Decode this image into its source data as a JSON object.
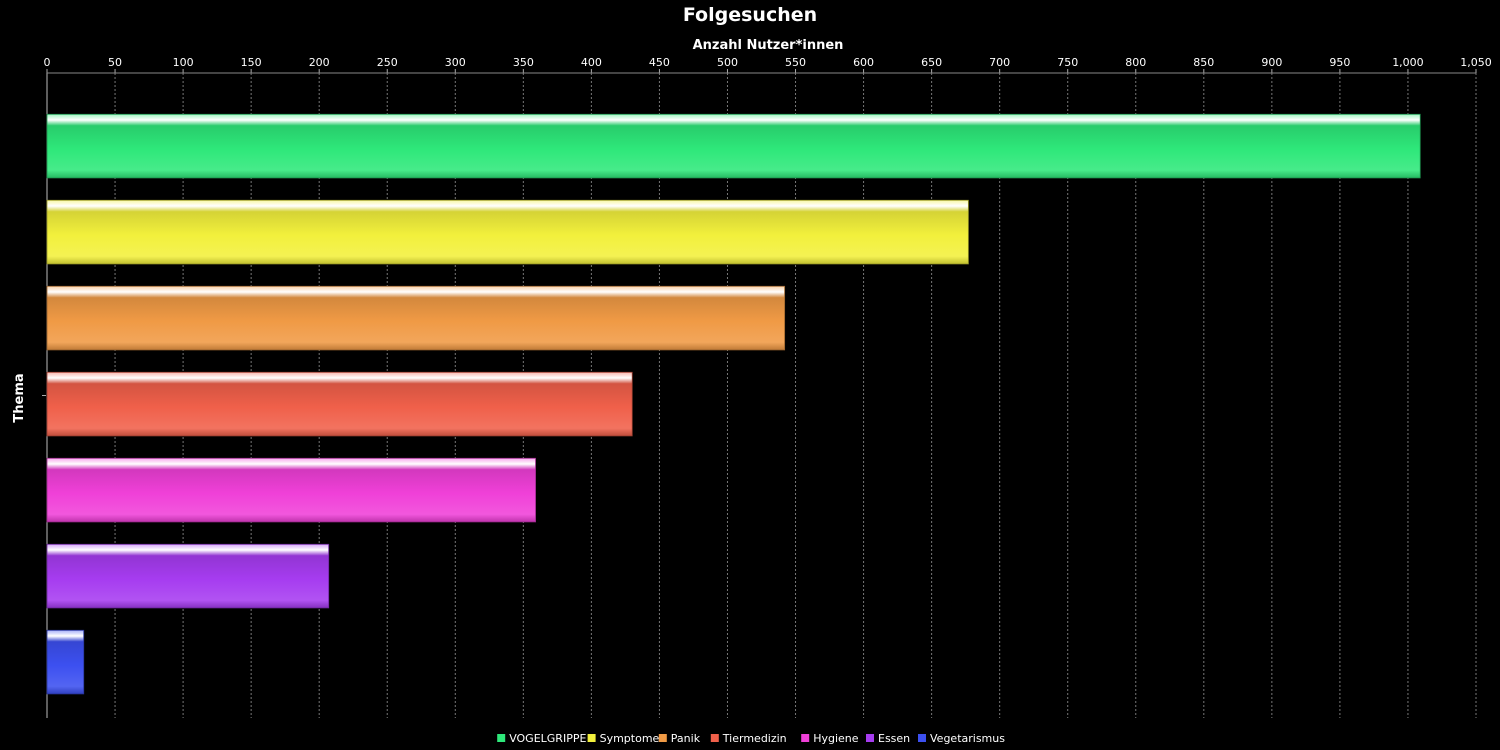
{
  "chart_data": {
    "type": "bar",
    "orientation": "horizontal",
    "title": "Folgesuchen",
    "xlabel": "Anzahl Nutzer*innen",
    "ylabel": "Thema",
    "xlim": [
      0,
      1050
    ],
    "x_ticks": [
      "0",
      "50",
      "100",
      "150",
      "200",
      "250",
      "300",
      "350",
      "400",
      "450",
      "500",
      "550",
      "600",
      "650",
      "700",
      "750",
      "800",
      "850",
      "900",
      "950",
      "1,000",
      "1,050"
    ],
    "x_axis_position": "top",
    "grid": true,
    "legend_position": "bottom-center",
    "series": [
      {
        "name": "VOGELGRIPPE",
        "value": 1009,
        "color": "#2ee87a"
      },
      {
        "name": "Symptome",
        "value": 677,
        "color": "#f2f03c"
      },
      {
        "name": "Panik",
        "value": 542,
        "color": "#f09a45"
      },
      {
        "name": "Tiermedizin",
        "value": 430,
        "color": "#f0604a"
      },
      {
        "name": "Hygiene",
        "value": 359,
        "color": "#f040d8"
      },
      {
        "name": "Essen",
        "value": 207,
        "color": "#a63cf0"
      },
      {
        "name": "Vegetarismus",
        "value": 27,
        "color": "#3c50f0"
      }
    ]
  }
}
